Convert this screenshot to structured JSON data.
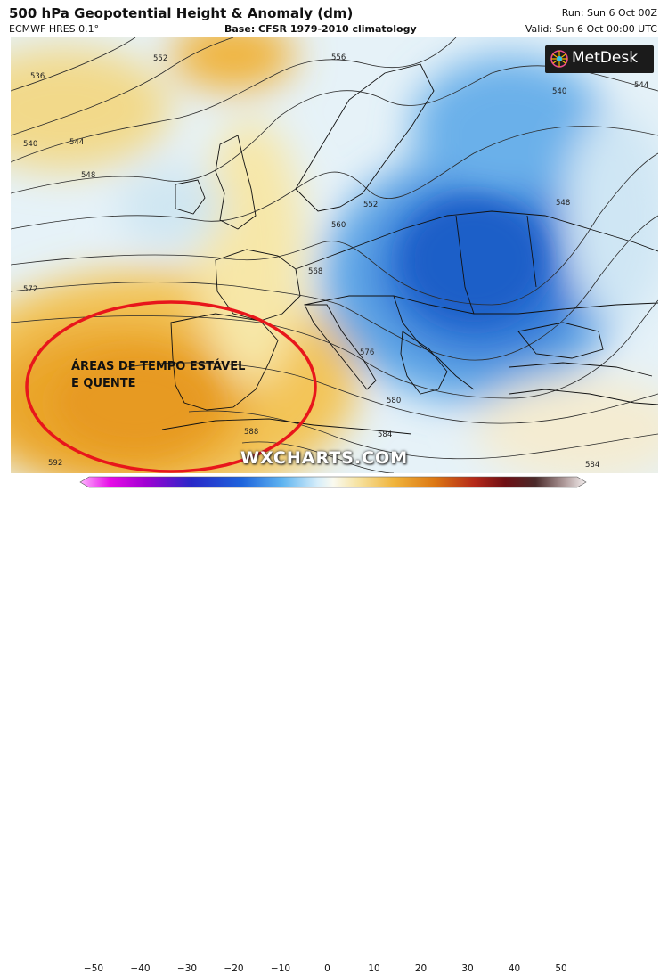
{
  "header": {
    "title": "500 hPa Geopotential Height & Anomaly (dm)",
    "model": "ECMWF HRES 0.1°",
    "base": "Base: CFSR 1979-2010 climatology",
    "run": "Run: Sun 6 Oct 00Z",
    "valid": "Valid: Sun 6 Oct 00:00 UTC"
  },
  "logo": {
    "text": "MetDesk",
    "icon": "globe-icon"
  },
  "annotation": {
    "line1": "ÁREAS DE TEMPO ESTÁVEL",
    "line2": "E QUENTE",
    "circle_color": "#e8161b"
  },
  "watermark": "WXCHARTS.COM",
  "contour_labels": [
    "536",
    "540",
    "544",
    "548",
    "552",
    "556",
    "560",
    "568",
    "572",
    "576",
    "580",
    "584",
    "588",
    "592",
    "540",
    "544",
    "548",
    "552",
    "584"
  ],
  "colorbar": {
    "ticks": [
      "−50",
      "−40",
      "−30",
      "−20",
      "−10",
      "0",
      "10",
      "20",
      "30",
      "40",
      "50"
    ],
    "range": [
      -50,
      50
    ],
    "colors": [
      "#ffb3ff",
      "#d200d2",
      "#7a00c8",
      "#1e1ec8",
      "#1e78e6",
      "#64b4f0",
      "#d2ecfa",
      "#fafaf0",
      "#f5e0a0",
      "#f0b43c",
      "#dc6e14",
      "#b4281e",
      "#780f14",
      "#4a2a2a",
      "#b4a0a0",
      "#f5f0f0"
    ]
  }
}
